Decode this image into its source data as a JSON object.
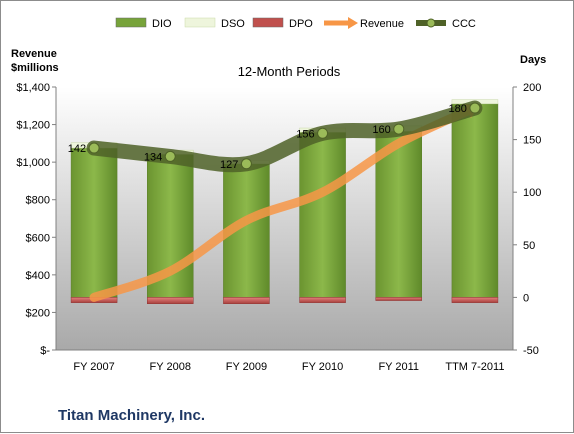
{
  "chart_data": {
    "type": "bar",
    "title": "",
    "subtitle": "12-Month Periods",
    "company": "Titan Machinery, Inc.",
    "categories": [
      "FY 2007",
      "FY 2008",
      "FY 2009",
      "FY 2010",
      "FY 2011",
      "TTM 7-2011"
    ],
    "left_axis": {
      "label_line1": "Revenue",
      "label_line2": "$millions",
      "ticks": [
        "$-",
        "$200",
        "$400",
        "$600",
        "$800",
        "$1,000",
        "$1,200",
        "$1,400"
      ],
      "ylim": [
        0,
        1400
      ]
    },
    "right_axis": {
      "label": "Days",
      "ticks": [
        "-50",
        "0",
        "50",
        "100",
        "150",
        "200"
      ],
      "ylim": [
        -50,
        200
      ]
    },
    "series": [
      {
        "name": "DIO",
        "kind": "stacked-bar",
        "axis": "right",
        "color": "#77a33a",
        "values": [
          142,
          136,
          127,
          157,
          158,
          184
        ]
      },
      {
        "name": "DSO",
        "kind": "stacked-bar",
        "axis": "right",
        "color": "#eef5dc",
        "values": [
          5,
          4,
          3,
          4,
          5,
          4
        ]
      },
      {
        "name": "DPO",
        "kind": "stacked-bar",
        "axis": "right",
        "color": "#c0504d",
        "values": [
          -5,
          -6,
          -6,
          -5,
          -3,
          -5
        ]
      },
      {
        "name": "Revenue",
        "kind": "line",
        "axis": "left",
        "color": "#f79646",
        "values": [
          280,
          420,
          690,
          840,
          1100,
          1290
        ]
      },
      {
        "name": "CCC",
        "kind": "line",
        "axis": "right",
        "color": "#4f6228",
        "values": [
          142,
          134,
          127,
          156,
          160,
          180
        ],
        "data_labels": [
          "142",
          "134",
          "127",
          "156",
          "160",
          "180"
        ]
      }
    ],
    "legend": {
      "position": "top",
      "items": [
        "DIO",
        "DSO",
        "DPO",
        "Revenue",
        "CCC"
      ]
    },
    "grid": false
  }
}
